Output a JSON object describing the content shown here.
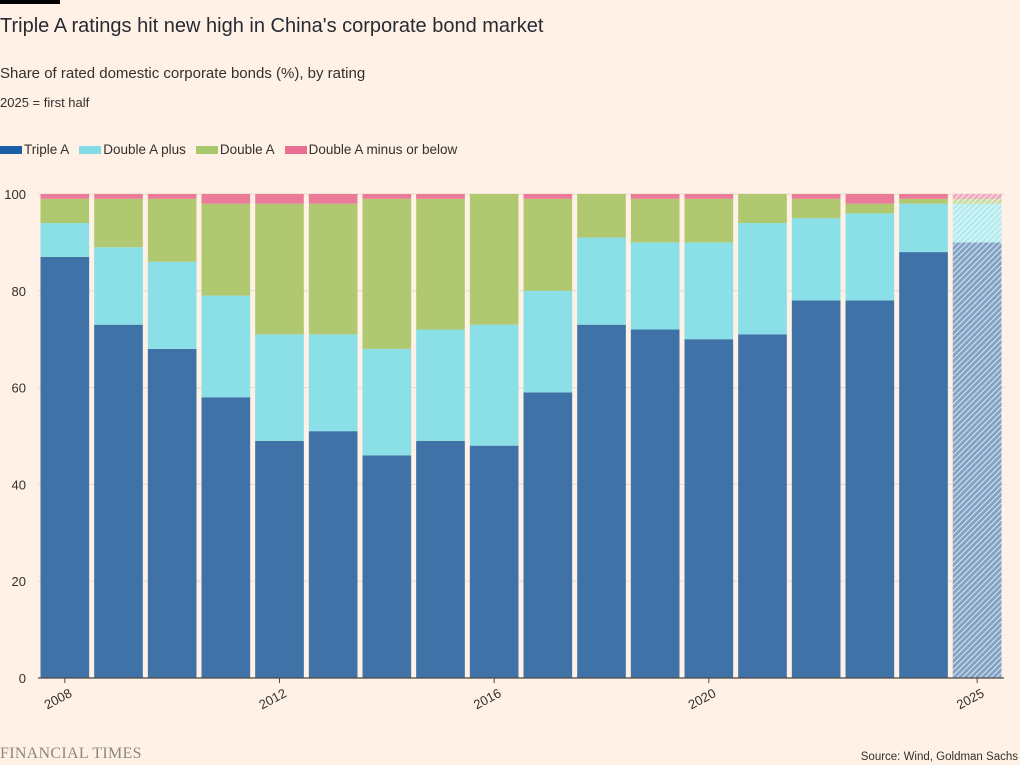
{
  "header": {
    "title": "Triple A ratings hit new high in China's corporate bond market",
    "subtitle": "Share of rated domestic corporate bonds (%), by rating",
    "note": "2025 = first half"
  },
  "legend": [
    {
      "label": "Triple A",
      "color": "#1a5ea8"
    },
    {
      "label": "Double A plus",
      "color": "#84dbe8"
    },
    {
      "label": "Double A",
      "color": "#a9c76c"
    },
    {
      "label": "Double A minus or below",
      "color": "#ea6e93"
    }
  ],
  "footer": {
    "logo": "FINANCIAL TIMES",
    "source": "Source: Wind, Goldman Sachs"
  },
  "chart_data": {
    "type": "bar",
    "stacked": true,
    "title": "Triple A ratings hit new high in China's corporate bond market",
    "subtitle": "Share of rated domestic corporate bonds (%), by rating",
    "categories": [
      2008,
      2009,
      2010,
      2011,
      2012,
      2013,
      2014,
      2015,
      2016,
      2017,
      2018,
      2019,
      2020,
      2021,
      2022,
      2023,
      2024,
      2025
    ],
    "x_tick_labels": [
      "2008",
      "2012",
      "2016",
      "2020",
      "2025"
    ],
    "series": [
      {
        "name": "Triple A",
        "color": "#3f72a7",
        "values": [
          87,
          73,
          68,
          58,
          49,
          51,
          46,
          49,
          48,
          59,
          73,
          72,
          70,
          71,
          78,
          78,
          88,
          90
        ]
      },
      {
        "name": "Double A plus",
        "color": "#8ae0e6",
        "values": [
          7,
          16,
          18,
          21,
          22,
          20,
          22,
          23,
          25,
          21,
          18,
          18,
          20,
          23,
          17,
          18,
          10,
          8
        ]
      },
      {
        "name": "Double A",
        "color": "#b0c971",
        "values": [
          5,
          10,
          13,
          19,
          27,
          27,
          31,
          27,
          27,
          19,
          9,
          9,
          9,
          6,
          4,
          2,
          1,
          1
        ]
      },
      {
        "name": "Double A minus or below",
        "color": "#ea7c9a",
        "values": [
          1,
          1,
          1,
          2,
          2,
          2,
          1,
          1,
          0,
          1,
          0,
          1,
          1,
          0,
          1,
          2,
          1,
          1
        ]
      }
    ],
    "hatched_categories": [
      2025
    ],
    "ylim": [
      0,
      100
    ],
    "y_ticks": [
      0,
      20,
      40,
      60,
      80,
      100
    ],
    "grid": true,
    "legend_position": "top-left"
  }
}
